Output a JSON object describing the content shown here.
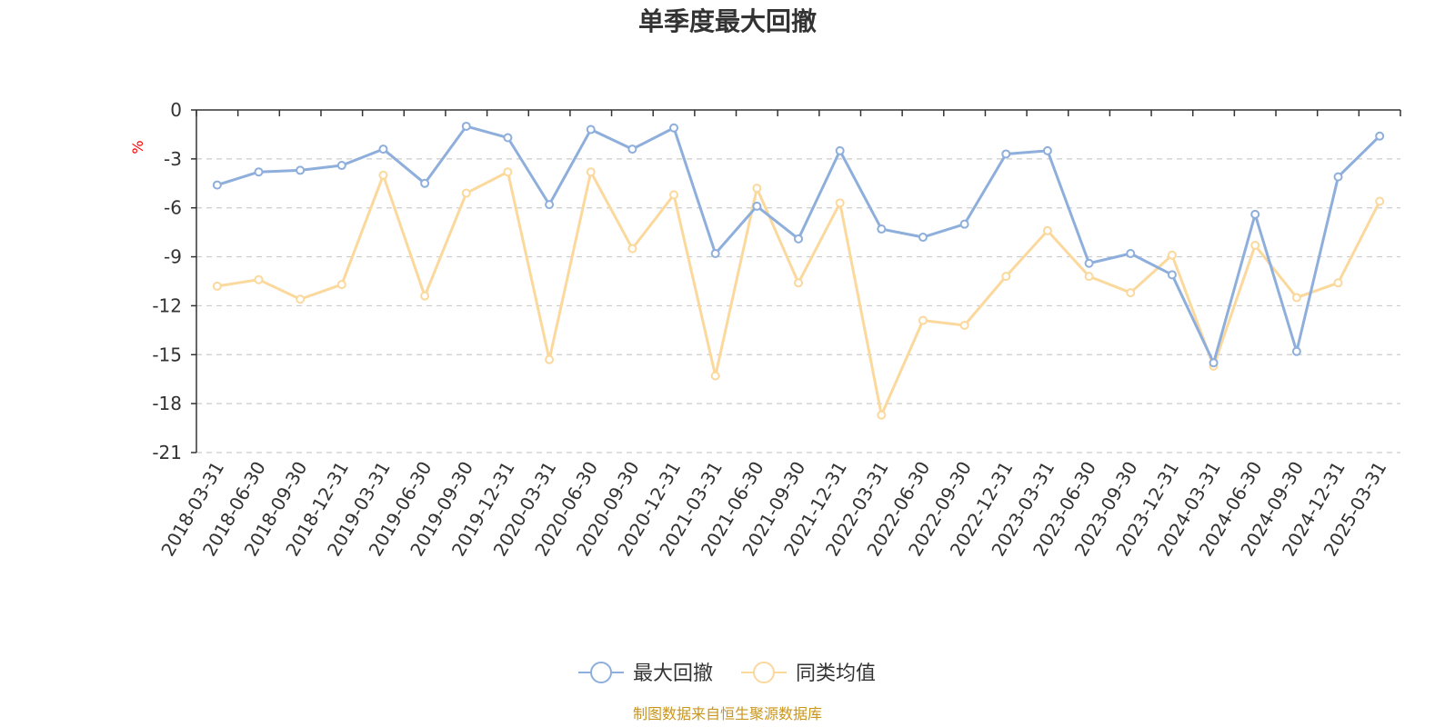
{
  "chart_data": {
    "type": "line",
    "title": "单季度最大回撤",
    "ylabel": "%",
    "ylim": [
      -21,
      0
    ],
    "yticks": [
      0,
      -3,
      -6,
      -9,
      -12,
      -15,
      -18,
      -21
    ],
    "grid": true,
    "legend_position": "bottom",
    "categories": [
      "2018-03-31",
      "2018-06-30",
      "2018-09-30",
      "2018-12-31",
      "2019-03-31",
      "2019-06-30",
      "2019-09-30",
      "2019-12-31",
      "2020-03-31",
      "2020-06-30",
      "2020-09-30",
      "2020-12-31",
      "2021-03-31",
      "2021-06-30",
      "2021-09-30",
      "2021-12-31",
      "2022-03-31",
      "2022-06-30",
      "2022-09-30",
      "2022-12-31",
      "2023-03-31",
      "2023-06-30",
      "2023-09-30",
      "2023-12-31",
      "2024-03-31",
      "2024-06-30",
      "2024-09-30",
      "2024-12-31",
      "2025-03-31"
    ],
    "series": [
      {
        "name": "最大回撤",
        "color": "#8eaedb",
        "values": [
          -4.6,
          -3.8,
          -3.7,
          -3.4,
          -2.4,
          -4.5,
          -1.0,
          -1.7,
          -5.8,
          -1.2,
          -2.4,
          -1.1,
          -8.8,
          -5.9,
          -7.9,
          -2.5,
          -7.3,
          -7.8,
          -7.0,
          -2.7,
          -2.5,
          -9.4,
          -8.8,
          -10.1,
          -15.5,
          -6.4,
          -14.8,
          -4.1,
          -1.6
        ]
      },
      {
        "name": "同类均值",
        "color": "#fbd89c",
        "values": [
          -10.8,
          -10.4,
          -11.6,
          -10.7,
          -4.0,
          -11.4,
          -5.1,
          -3.8,
          -15.3,
          -3.8,
          -8.5,
          -5.2,
          -16.3,
          -4.8,
          -10.6,
          -5.7,
          -18.7,
          -12.9,
          -13.2,
          -10.2,
          -7.4,
          -10.2,
          -11.2,
          -8.9,
          -15.7,
          -8.3,
          -11.5,
          -10.6,
          -5.6
        ]
      }
    ]
  },
  "source_note": "制图数据来自恒生聚源数据库"
}
